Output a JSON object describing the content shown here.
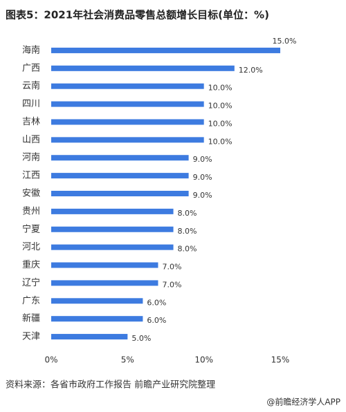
{
  "chart_data": {
    "type": "bar",
    "orientation": "horizontal",
    "title": "图表5：2021年社会消费品零售总额增长目标(单位：%)",
    "categories": [
      "海南",
      "广西",
      "云南",
      "四川",
      "吉林",
      "山西",
      "河南",
      "江西",
      "安徽",
      "贵州",
      "宁夏",
      "河北",
      "重庆",
      "辽宁",
      "广东",
      "新疆",
      "天津"
    ],
    "values": [
      15,
      12,
      10,
      10,
      10,
      10,
      9,
      9,
      9,
      8,
      8,
      8,
      7,
      7,
      6,
      6,
      5
    ],
    "value_labels": [
      "15.0%",
      "12.0%",
      "10.0%",
      "10.0%",
      "10.0%",
      "10.0%",
      "9.0%",
      "9.0%",
      "9.0%",
      "8.0%",
      "8.0%",
      "8.0%",
      "7.0%",
      "7.0%",
      "6.0%",
      "6.0%",
      "5.0%"
    ],
    "color": "#3d7be0",
    "xlim": [
      0,
      15
    ],
    "xticks": [
      {
        "value": 0,
        "label": "0%"
      },
      {
        "value": 5,
        "label": "5%"
      },
      {
        "value": 10,
        "label": "10%"
      },
      {
        "value": 15,
        "label": "15%"
      }
    ],
    "grid": false
  },
  "source": "资料来源：各省市政府工作报告 前瞻产业研究院整理",
  "footer": "@前瞻经济学人APP"
}
